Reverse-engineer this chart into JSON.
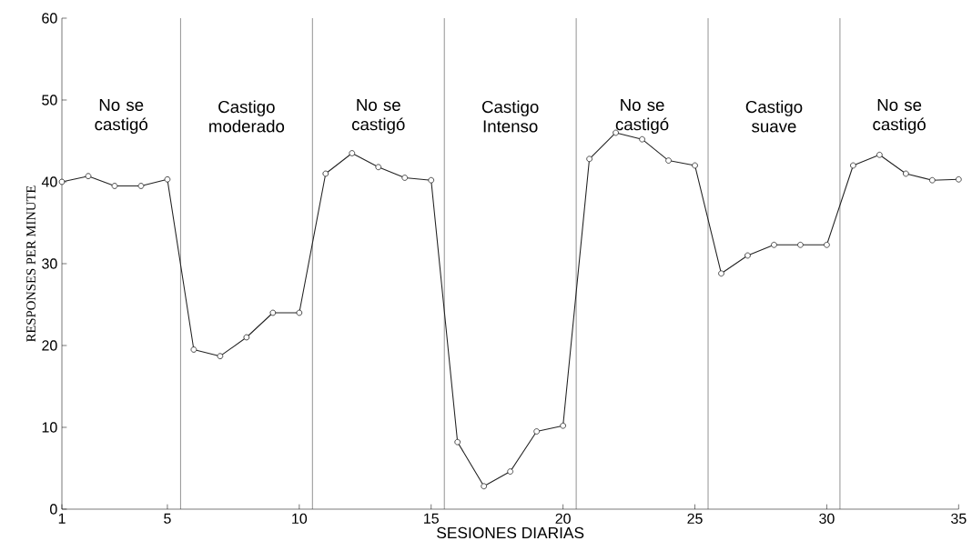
{
  "chart_data": {
    "type": "line",
    "xlabel": "SESIONES DIARIAS",
    "ylabel": "RESPONSES PER MINUTE",
    "x": [
      1,
      2,
      3,
      4,
      5,
      6,
      7,
      8,
      9,
      10,
      11,
      12,
      13,
      14,
      15,
      16,
      17,
      18,
      19,
      20,
      21,
      22,
      23,
      24,
      25,
      26,
      27,
      28,
      29,
      30,
      31,
      32,
      33,
      34,
      35
    ],
    "series": [
      {
        "color": "#222222",
        "values": [
          40,
          40.7,
          39.5,
          39.5,
          40.3,
          19.5,
          18.7,
          21,
          24,
          24,
          41,
          43.5,
          41.8,
          40.5,
          40.2,
          8.2,
          2.8,
          4.6,
          9.5,
          10.2,
          42.8,
          46,
          45.2,
          42.6,
          42,
          28.8,
          31,
          32.3,
          32.3,
          32.3,
          42,
          43.3,
          41,
          40.2,
          40.3
        ]
      }
    ],
    "xlim": [
      1,
      35
    ],
    "xticks": [
      1,
      5,
      10,
      15,
      20,
      25,
      30,
      35
    ],
    "ylim": [
      0,
      60
    ],
    "yticks": [
      0,
      10,
      20,
      30,
      40,
      50,
      60
    ],
    "ref_lines": [
      {
        "axis": "x",
        "value": 5.5,
        "color": "#333333"
      },
      {
        "axis": "x",
        "value": 10.5,
        "color": "#333333"
      },
      {
        "axis": "x",
        "value": 15.5,
        "color": "#333333"
      },
      {
        "axis": "x",
        "value": 20.5,
        "color": "#333333"
      },
      {
        "axis": "x",
        "value": 25.5,
        "color": "#333333"
      },
      {
        "axis": "x",
        "value": 30.5,
        "color": "#333333"
      }
    ],
    "annotations": [
      "No se castigó",
      "Castigo moderado",
      "No se castigó",
      "Castigo Intenso",
      "No se castigó",
      "Castigo suave",
      "No se castigó"
    ],
    "marker": "circle",
    "line_style": "solid",
    "grid": false,
    "legend": false
  }
}
